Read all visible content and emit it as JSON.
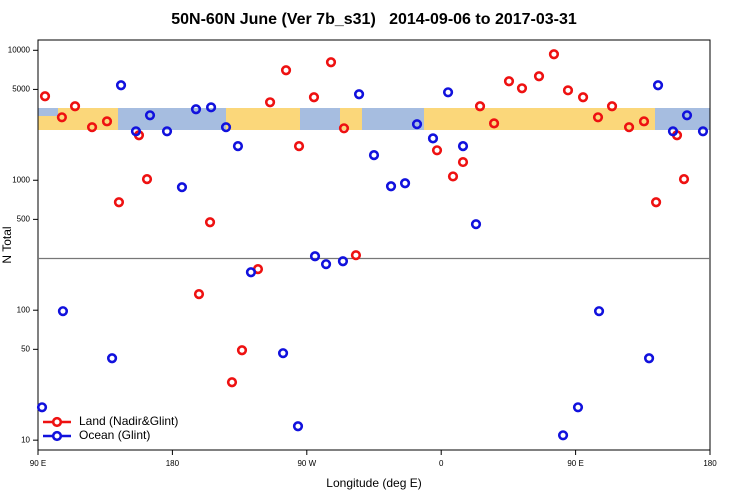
{
  "chart_data": {
    "type": "scatter",
    "title": "50N-60N June (Ver 7b_s31)   2014-09-06 to 2017-03-31",
    "x_label": "Longitude (deg E)",
    "y_label": "N Total",
    "log_y": true,
    "legend": "bottom left",
    "xlim": [
      90,
      540
    ],
    "ylim": [
      8.4,
      12000
    ],
    "xticks": [
      {
        "value": 90,
        "label": "90 E"
      },
      180,
      {
        "value": 270,
        "label": "90 W"
      },
      {
        "value": 360,
        "label": "0"
      },
      {
        "value": 450,
        "label": "90 E"
      },
      {
        "value": 540,
        "label": "180"
      }
    ],
    "yticks": [
      10,
      50,
      100,
      500,
      1000,
      5000,
      10000
    ],
    "hline": 250,
    "series": [
      {
        "name": "Land (Nadir&Glint)",
        "color": "#ee1111",
        "x": [
          94.7,
          106,
          114.8,
          126.2,
          136.2,
          144.2,
          157.6,
          163,
          197.8,
          205.2,
          219.9,
          226.6,
          237.3,
          245.4,
          256.1,
          264.8,
          274.8,
          286.2,
          294.9,
          302.9,
          357.2,
          367.9,
          374.6,
          386,
          395.4,
          405.4,
          414.1,
          425.5,
          435.5,
          444.9,
          455,
          465,
          474.4,
          485.8,
          495.8,
          503.9,
          517.9,
          522.6
        ],
        "values": [
          4430,
          3050,
          3710,
          2560,
          2840,
          677,
          2220,
          1020,
          133,
          475,
          27.9,
          49.2,
          207,
          3980,
          7020,
          1830,
          4350,
          8090,
          2510,
          265,
          1700,
          1070,
          1380,
          3710,
          2740,
          5780,
          5100,
          6310,
          9320,
          4920,
          4350,
          3050,
          3710,
          2560,
          2840,
          677,
          2220,
          1020
        ]
      },
      {
        "name": "Ocean (Glint)",
        "color": "#1111dd",
        "x": [
          92.7,
          106.7,
          139.6,
          145.6,
          155.6,
          165,
          176.4,
          186.4,
          195.8,
          205.9,
          215.9,
          223.9,
          232.6,
          254.1,
          264.1,
          275.5,
          282.9,
          294.2,
          305,
          315,
          326.4,
          335.8,
          343.8,
          354.5,
          364.6,
          374.6,
          383.3,
          441.6,
          451.6,
          465.7,
          499.2,
          505.2,
          515.2,
          524.6,
          535.3
        ],
        "values": [
          17.9,
          98.3,
          42.7,
          5380,
          2380,
          3160,
          2380,
          884,
          3520,
          3640,
          2560,
          1830,
          196,
          46.7,
          12.8,
          260,
          226,
          238,
          4590,
          1560,
          899,
          948,
          2700,
          2100,
          4750,
          1830,
          459,
          10.9,
          17.9,
          98.3,
          42.7,
          5380,
          2380,
          3160,
          2380
        ]
      }
    ]
  }
}
